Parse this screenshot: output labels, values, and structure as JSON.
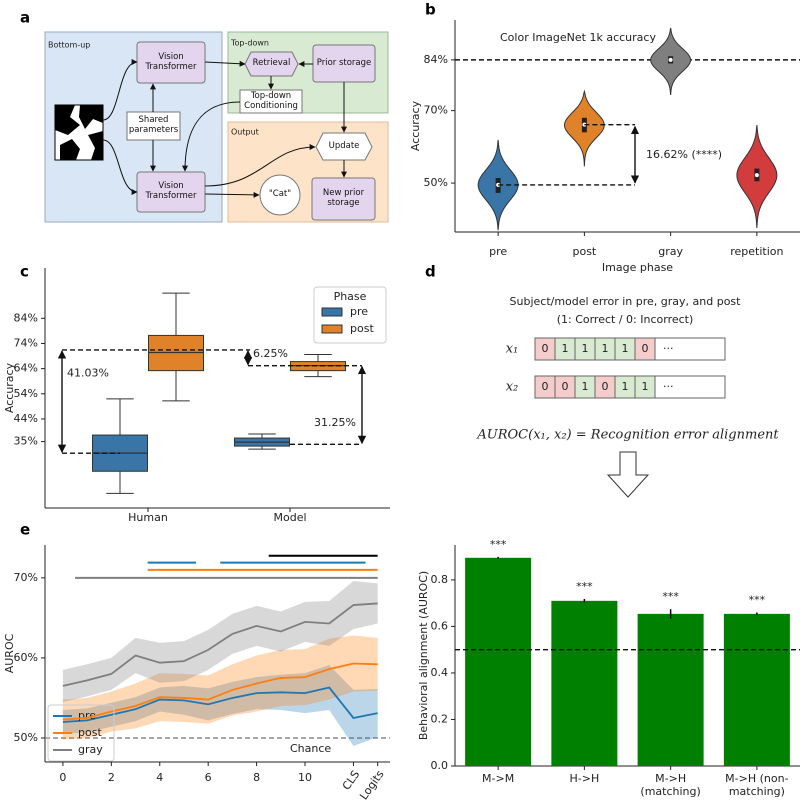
{
  "diagram_a": {
    "panel_label": "a",
    "groups": [
      "Bottom-up",
      "Top-down",
      "Output"
    ],
    "nodes": [
      "Vision Transformer",
      "Shared parameters",
      "Vision Transformer",
      "Retrieval",
      "Prior storage",
      "Top-down Conditioning",
      "Update",
      "\"Cat\"",
      "New prior storage"
    ]
  },
  "diagram_d": {
    "panel_label": "d",
    "title": "Subject/model error in pre, gray, and post",
    "subtitle": "(1: Correct / 0: Incorrect)",
    "rows": [
      {
        "label": "x₁",
        "cells": [
          0,
          1,
          1,
          1,
          1,
          0
        ],
        "more": "···"
      },
      {
        "label": "x₂",
        "cells": [
          0,
          0,
          1,
          0,
          1,
          1
        ],
        "more": "···"
      }
    ],
    "equation": "AUROC(x₁, x₂) = Recognition error alignment"
  },
  "chart_data": [
    {
      "panel_label": "b",
      "type": "violin",
      "title": "Color ImageNet 1k accuracy",
      "xlabel": "Image phase",
      "ylabel": "Accuracy",
      "categories": [
        "pre",
        "post",
        "gray",
        "repetition"
      ],
      "colors": [
        "#3a75a8",
        "#e0822a",
        "#7f7f7f",
        "#d23c3c"
      ],
      "median": [
        49.5,
        66.12,
        84,
        52.2
      ],
      "q1": [
        47.3,
        64,
        83,
        50.5
      ],
      "q3": [
        51.4,
        68,
        85,
        54
      ],
      "min": [
        37,
        54.6,
        74.3,
        37.6
      ],
      "max": [
        61.9,
        75.3,
        92.8,
        66
      ],
      "ylim": [
        36.5,
        95
      ],
      "yticks": [
        {
          "value": 50,
          "label": "50%"
        },
        {
          "value": 70,
          "label": "70%"
        },
        {
          "value": 84,
          "label": "84%"
        }
      ],
      "reference_line": 84,
      "annotation": {
        "text": "16.62% (****)",
        "from": 49.5,
        "to": 66.12
      }
    },
    {
      "panel_label": "c",
      "type": "box",
      "ylabel": "Accuracy",
      "categories": [
        "Human",
        "Model"
      ],
      "legend_title": "Phase",
      "legend": "upper right",
      "series": [
        {
          "name": "pre",
          "color": "#3a75a8",
          "whislo": [
            14.4,
            32
          ],
          "q1": [
            23.2,
            33.2
          ],
          "med": [
            30.4,
            34.8
          ],
          "q3": [
            37.6,
            36.4
          ],
          "whishi": [
            52,
            38
          ]
        },
        {
          "name": "post",
          "color": "#e0822a",
          "whislo": [
            51.2,
            60.8
          ],
          "q1": [
            63.2,
            63.2
          ],
          "med": [
            70.4,
            65.2
          ],
          "q3": [
            77.2,
            66.8
          ],
          "whishi": [
            94,
            69.6
          ]
        }
      ],
      "ylim": [
        8.6,
        104
      ],
      "yticks": [
        {
          "value": 35,
          "label": "35%"
        },
        {
          "value": 44,
          "label": "44%"
        },
        {
          "value": 54,
          "label": "54%"
        },
        {
          "value": 64,
          "label": "64%"
        },
        {
          "value": 74,
          "label": "74%"
        },
        {
          "value": 84,
          "label": "84%"
        }
      ],
      "annotations": [
        {
          "text": "41.03%",
          "from": 30.4,
          "to": 71.43
        },
        {
          "text": "6.25%",
          "from": 65.18,
          "to": 71.43
        },
        {
          "text": "31.25%",
          "from": 33.93,
          "to": 65.18
        }
      ]
    },
    {
      "panel_label": "e",
      "type": "line",
      "ylabel": "AUROC",
      "legend": "lower left",
      "x": [
        0,
        1,
        2,
        3,
        4,
        5,
        6,
        7,
        8,
        9,
        10,
        11,
        12,
        13
      ],
      "xticks": [
        0,
        2,
        4,
        6,
        8,
        10,
        {
          "value": 12,
          "label": "CLS"
        },
        {
          "value": 13,
          "label": "Logits"
        }
      ],
      "xlim": [
        -0.74,
        13.51
      ],
      "ylim": [
        47,
        74.1
      ],
      "yticks": [
        {
          "value": 50,
          "label": "50%"
        },
        {
          "value": 60,
          "label": "60%"
        },
        {
          "value": 70,
          "label": "70%"
        }
      ],
      "series": [
        {
          "name": "pre",
          "color": "#1f77b4",
          "values": [
            52,
            52.2,
            52.9,
            53.6,
            54.8,
            54.7,
            54.2,
            55,
            55.6,
            55.7,
            55.6,
            56.3,
            52.5,
            53.1
          ],
          "errors": [
            1.5,
            1.5,
            1.5,
            1.5,
            1.5,
            1.8,
            2,
            2,
            2,
            2.2,
            2.5,
            2.8,
            3.5,
            3
          ]
        },
        {
          "name": "post",
          "color": "#ff7f0e",
          "values": [
            52.3,
            52.5,
            53.3,
            54,
            55.1,
            55,
            54.8,
            56,
            56.8,
            57.5,
            57.6,
            58.6,
            59.3,
            59.2
          ],
          "errors": [
            2.5,
            2.5,
            2.5,
            2.8,
            3,
            3,
            3,
            3.2,
            3.5,
            3.5,
            3.5,
            3.8,
            3.5,
            3.3
          ]
        },
        {
          "name": "gray",
          "color": "#7f7f7f",
          "values": [
            56.5,
            57.2,
            58,
            60.3,
            59.4,
            59.6,
            61,
            63,
            64,
            63.3,
            64.5,
            64.3,
            66.6,
            66.8
          ],
          "errors": [
            2,
            2,
            2,
            2.2,
            2.5,
            2.5,
            2.5,
            2.5,
            2.5,
            2.5,
            2.5,
            2.8,
            3,
            2.5
          ]
        }
      ],
      "chance_line": {
        "value": 50,
        "label": "Chance"
      },
      "significance_bars": [
        {
          "color": "#7f7f7f",
          "y": 70,
          "x": [
            0.5,
            13
          ]
        },
        {
          "color": "#ff7f0e",
          "y": 71,
          "x": [
            3.5,
            13
          ]
        },
        {
          "color": "#1f77b4",
          "y": 71.9,
          "x": [
            3.5,
            5.5
          ]
        },
        {
          "color": "#1f77b4",
          "y": 71.9,
          "x": [
            6.5,
            12.5
          ]
        },
        {
          "color": "#000000",
          "y": 72.75,
          "x": [
            8.5,
            13
          ]
        }
      ]
    },
    {
      "type": "bar",
      "ylabel": "Behavioral alignment (AUROC)",
      "categories": [
        "M->M",
        "H->H",
        "M->H (matching)",
        "M->H (non-matching)"
      ],
      "values": [
        0.895,
        0.71,
        0.654,
        0.654
      ],
      "errors": [
        0.004,
        0.008,
        0.02,
        0.006
      ],
      "significance": [
        "***",
        "***",
        "***",
        "***"
      ],
      "color": "#008000",
      "ylim": [
        0,
        0.95
      ],
      "yticks": [
        {
          "value": 0,
          "label": "0.0"
        },
        0.2,
        0.4,
        0.6,
        0.8
      ],
      "reference_line": 0.5
    }
  ]
}
